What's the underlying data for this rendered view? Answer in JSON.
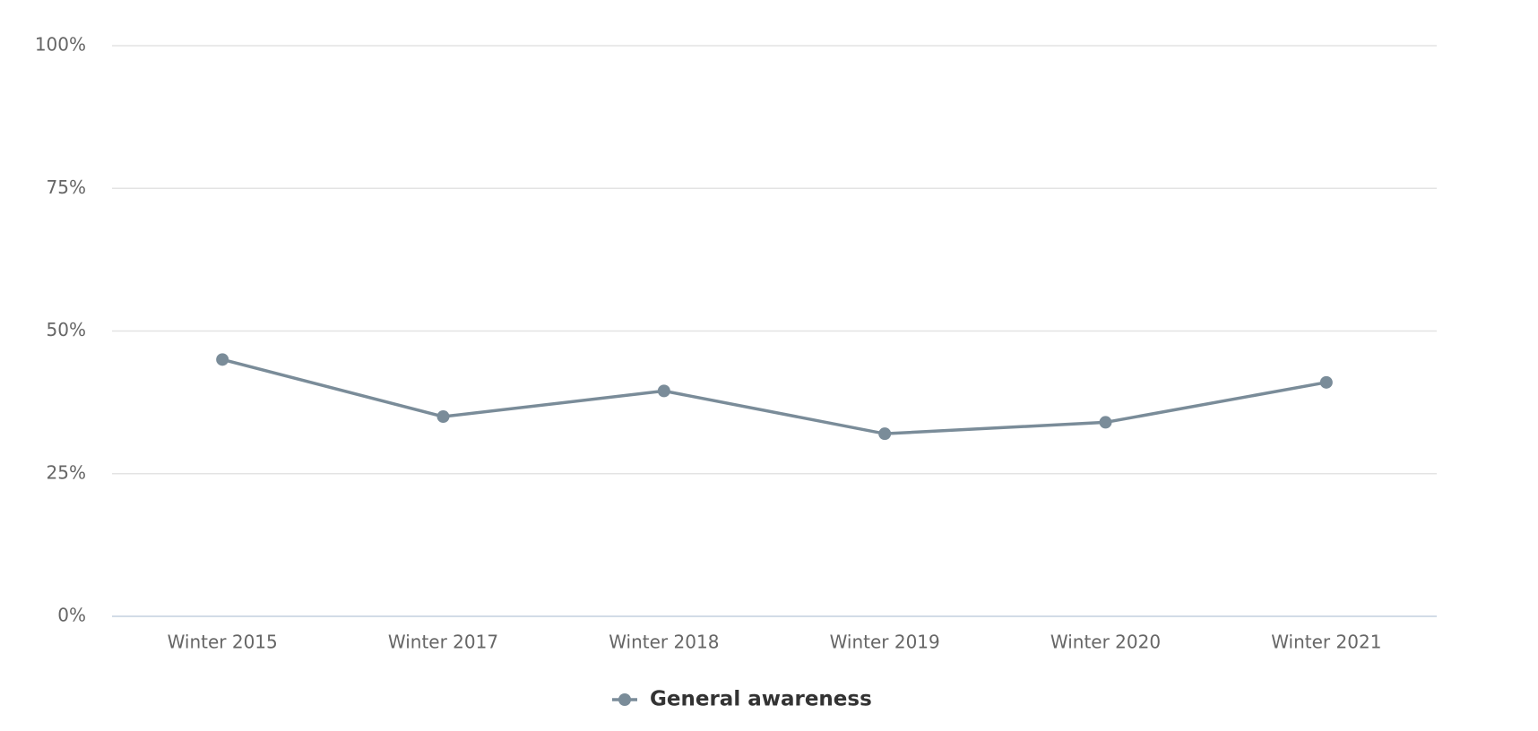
{
  "chart_data": {
    "type": "line",
    "categories": [
      "Winter 2015",
      "Winter 2017",
      "Winter 2018",
      "Winter 2019",
      "Winter 2020",
      "Winter 2021"
    ],
    "series": [
      {
        "name": "General awareness",
        "color": "#7a8c99",
        "values": [
          45,
          35,
          39.5,
          32,
          34,
          41
        ]
      }
    ],
    "ylim": [
      0,
      100
    ],
    "yticks": [
      {
        "value": 0,
        "label": "0%"
      },
      {
        "value": 25,
        "label": "25%"
      },
      {
        "value": 50,
        "label": "50%"
      },
      {
        "value": 75,
        "label": "75%"
      },
      {
        "value": 100,
        "label": "100%"
      }
    ],
    "grid": true,
    "legend": "bottom"
  }
}
